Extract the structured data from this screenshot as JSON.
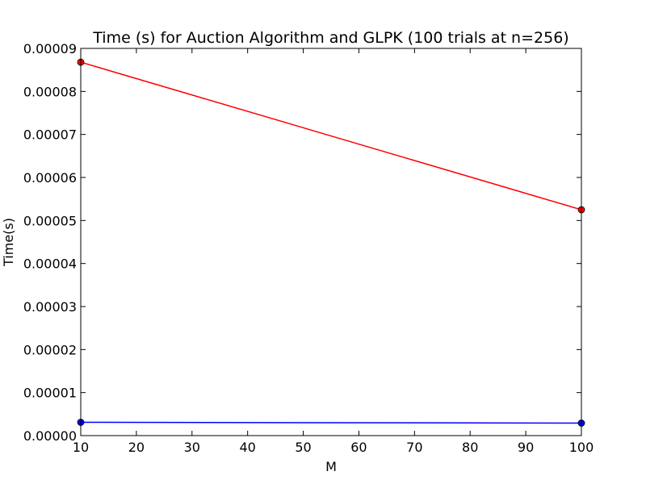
{
  "chart_data": {
    "type": "line",
    "title": "Time (s) for Auction Algorithm and GLPK (100 trials at n=256)",
    "xlabel": "M",
    "ylabel": "Time(s)",
    "xlim": [
      10,
      100
    ],
    "ylim": [
      0,
      9e-05
    ],
    "x_ticks": [
      "10",
      "20",
      "30",
      "40",
      "50",
      "60",
      "70",
      "80",
      "90",
      "100"
    ],
    "y_ticks": [
      "0.00000",
      "0.00001",
      "0.00002",
      "0.00003",
      "0.00004",
      "0.00005",
      "0.00006",
      "0.00007",
      "0.00008",
      "0.00009"
    ],
    "grid": false,
    "series": [
      {
        "color": "#ff0000",
        "x": [
          10,
          100
        ],
        "values": [
          8.68e-05,
          5.25e-05
        ]
      },
      {
        "color": "#0000ff",
        "x": [
          10,
          100
        ],
        "values": [
          3.1e-06,
          2.9e-06
        ]
      }
    ]
  }
}
